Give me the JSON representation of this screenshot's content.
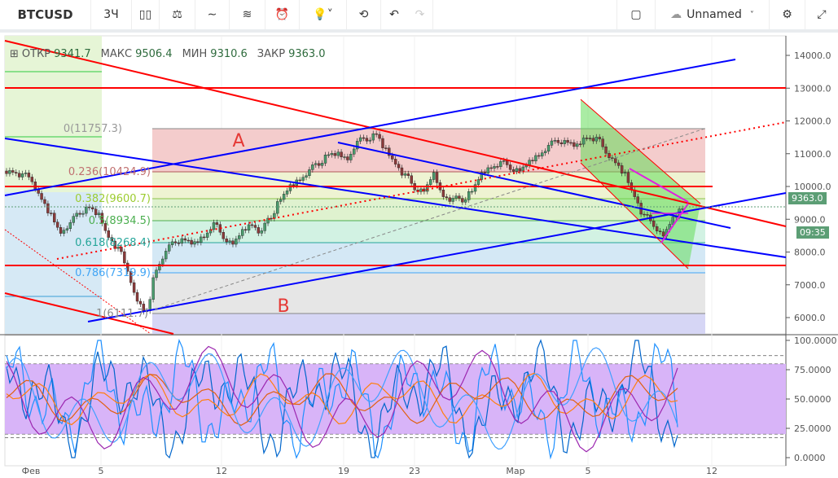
{
  "toolbar": {
    "symbol": "BTCUSD",
    "interval": "3Ч",
    "layout_name": "Unnamed",
    "icons": [
      "candles-icon",
      "indicators-icon",
      "compare-icon",
      "templates-icon",
      "alert-icon",
      "lightbulb-icon",
      "replay-icon",
      "undo-icon",
      "redo-icon",
      "square-icon",
      "cloud-icon",
      "gear-icon",
      "fullscreen-icon"
    ]
  },
  "ohlc": {
    "open_label": "ОТКР",
    "open": "9341.7",
    "high_label": "МАКС",
    "high": "9506.4",
    "low_label": "МИН",
    "low": "9310.6",
    "close_label": "ЗАКР",
    "close": "9363.0"
  },
  "price_axis": [
    "14000.0",
    "13000.0",
    "12000.0",
    "11000.0",
    "10000.0",
    "9000.0",
    "8000.0",
    "7000.0",
    "6000.0"
  ],
  "osc_axis": [
    "100.0000",
    "75.0000",
    "50.0000",
    "25.0000",
    "0.0000"
  ],
  "last_price": "9363.0",
  "countdown": "09:35",
  "time_axis": [
    "Фев",
    "5",
    "12",
    "19",
    "23",
    "Мар",
    "5",
    "12"
  ],
  "fib": [
    "0(11757.3)",
    "0.236(10424.9)",
    "0.382(9600.7)",
    "0.5(8934.5)",
    "0.618(8268.4)",
    "0.786(7319.9)",
    "1(6111.7)"
  ],
  "annotations": {
    "a": "A",
    "b": "B"
  },
  "colors": {
    "up": "#4a9c6d",
    "down": "#8b3a3a",
    "trend_red": "#ff0000",
    "trend_blue": "#0000ff",
    "osc_band": "#d8b4f8"
  },
  "chart_data": {
    "type": "line",
    "title": "BTCUSD",
    "ylim": [
      5500,
      14500
    ],
    "close_approx": [
      10473,
      10348,
      10224,
      9603,
      9106,
      8609,
      8858,
      9230,
      9355,
      9106,
      8485,
      8112,
      7491,
      6497,
      6125,
      7491,
      7988,
      8361,
      8361,
      8236,
      8485,
      8858,
      8485,
      8236,
      8609,
      8858,
      8609,
      9106,
      9603,
      9976,
      10224,
      10473,
      10721,
      10969,
      10969,
      10848,
      11342,
      11466,
      11590,
      11093,
      10721,
      10348,
      9976,
      9851,
      10348,
      9727,
      9603,
      9603,
      9851,
      10348,
      10597,
      10721,
      10597,
      10473,
      10721,
      10969,
      11218,
      11417,
      11342,
      11218,
      11516,
      11466,
      11093,
      10721,
      10348,
      9727,
      9106,
      8858,
      8485,
      8982,
      9363
    ]
  }
}
